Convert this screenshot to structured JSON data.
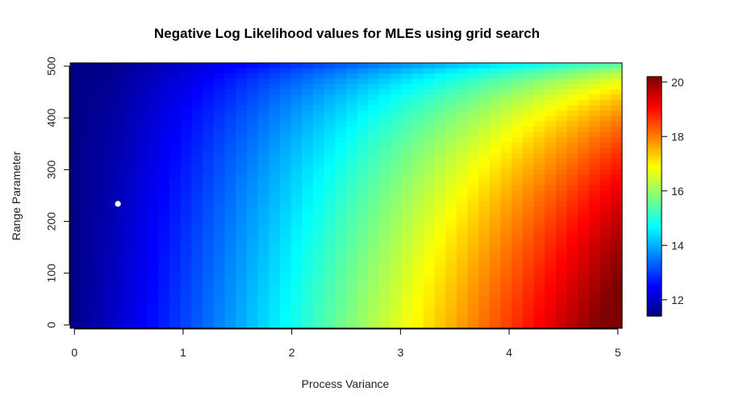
{
  "chart_data": {
    "type": "heatmap",
    "title": "Negative Log Likelihood values for MLEs using grid search",
    "xlabel": "Process Variance",
    "ylabel": "Range Parameter",
    "xlim": [
      0,
      5
    ],
    "ylim": [
      0,
      500
    ],
    "x_ticks": [
      0,
      1,
      2,
      3,
      4,
      5
    ],
    "y_ticks": [
      0,
      100,
      200,
      300,
      400,
      500
    ],
    "grid_cells": [
      50,
      50
    ],
    "colorscale": {
      "name": "jet",
      "range": [
        11.4,
        20.2
      ],
      "ticks": [
        12,
        14,
        16,
        18,
        20
      ],
      "colors": [
        "#00007F",
        "#0000FF",
        "#007FFF",
        "#00FFFF",
        "#7FFF7F",
        "#FFFF00",
        "#FF7F00",
        "#FF0000",
        "#7F0000"
      ]
    },
    "mle_point": {
      "x": 0.4,
      "y": 234,
      "color": "#ffffff"
    },
    "grid": false,
    "legend": "right"
  }
}
